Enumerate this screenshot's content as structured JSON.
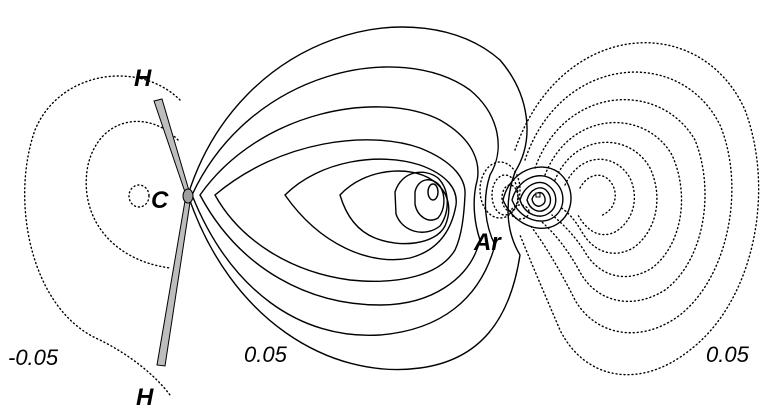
{
  "atoms": {
    "carbon": "C",
    "hydrogen_top": "H",
    "hydrogen_bottom": "H",
    "argon": "Ar"
  },
  "contour_values": {
    "left": "-0.05",
    "center": "0.05",
    "right": "0.05"
  },
  "line_styles": {
    "positive": "solid",
    "negative": "dotted"
  },
  "colors": {
    "contour": "#000000",
    "bond_fill": "#bdbdbd",
    "background": "#ffffff"
  }
}
